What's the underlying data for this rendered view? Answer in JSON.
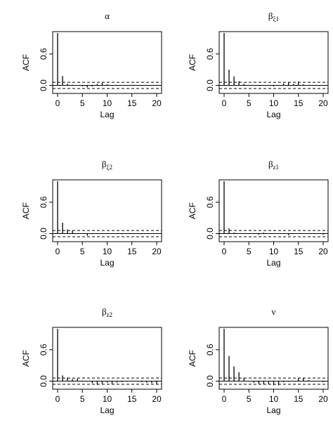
{
  "chart_data": [
    {
      "type": "bar",
      "title": "α",
      "xlabel": "Lag",
      "ylabel": "ACF",
      "xlim": [
        0,
        20
      ],
      "ylim": [
        -0.1,
        1.0
      ],
      "xticks": [
        "0",
        "5",
        "10",
        "15",
        "20"
      ],
      "yticks": [
        "0.0",
        "0.6"
      ],
      "confidence_band": [
        -0.06,
        0.06
      ],
      "lags": [
        0,
        1,
        2,
        3,
        4,
        5,
        6,
        7,
        8,
        9,
        10,
        11,
        12,
        13,
        14,
        15,
        16,
        17,
        18,
        19,
        20
      ],
      "values": [
        1.0,
        0.18,
        0.03,
        0.01,
        0.0,
        -0.02,
        -0.04,
        -0.02,
        0.03,
        0.05,
        0.02,
        0.0,
        -0.01,
        0.0,
        0.0,
        0.01,
        0.0,
        -0.01,
        0.0,
        0.0,
        0.0
      ]
    },
    {
      "type": "bar",
      "title": "β",
      "title_sub": "ξ1",
      "xlabel": "Lag",
      "ylabel": "ACF",
      "xlim": [
        0,
        20
      ],
      "ylim": [
        -0.1,
        1.0
      ],
      "xticks": [
        "0",
        "5",
        "10",
        "15",
        "20"
      ],
      "yticks": [
        "0.0",
        "0.6"
      ],
      "confidence_band": [
        -0.06,
        0.06
      ],
      "lags": [
        0,
        1,
        2,
        3,
        4,
        5,
        6,
        7,
        8,
        9,
        10,
        11,
        12,
        13,
        14,
        15,
        16,
        17,
        18,
        19,
        20
      ],
      "values": [
        1.0,
        0.3,
        0.17,
        0.08,
        0.03,
        0.01,
        0.0,
        -0.01,
        0.0,
        0.0,
        -0.02,
        0.0,
        0.04,
        0.06,
        0.03,
        0.07,
        0.02,
        0.0,
        0.0,
        0.0,
        0.0
      ]
    },
    {
      "type": "bar",
      "title": "β",
      "title_sub": "ξ2",
      "xlabel": "Lag",
      "ylabel": "ACF",
      "xlim": [
        0,
        20
      ],
      "ylim": [
        -0.1,
        1.0
      ],
      "xticks": [
        "0",
        "5",
        "10",
        "15",
        "20"
      ],
      "yticks": [
        "0.0",
        "0.6"
      ],
      "confidence_band": [
        -0.06,
        0.06
      ],
      "lags": [
        0,
        1,
        2,
        3,
        4,
        5,
        6,
        7,
        8,
        9,
        10,
        11,
        12,
        13,
        14,
        15,
        16,
        17,
        18,
        19,
        20
      ],
      "values": [
        1.0,
        0.21,
        0.08,
        0.06,
        0.01,
        0.0,
        -0.04,
        -0.01,
        0.0,
        0.0,
        0.0,
        0.0,
        0.0,
        -0.01,
        0.0,
        0.0,
        0.0,
        -0.01,
        0.0,
        0.0,
        0.0
      ]
    },
    {
      "type": "bar",
      "title": "β",
      "title_sub": "z1",
      "xlabel": "Lag",
      "ylabel": "ACF",
      "xlim": [
        0,
        20
      ],
      "ylim": [
        -0.1,
        1.0
      ],
      "xticks": [
        "0",
        "5",
        "10",
        "15",
        "20"
      ],
      "yticks": [
        "0.0",
        "0.6"
      ],
      "confidence_band": [
        -0.06,
        0.06
      ],
      "lags": [
        0,
        1,
        2,
        3,
        4,
        5,
        6,
        7,
        8,
        9,
        10,
        11,
        12,
        13,
        14,
        15,
        16,
        17,
        18,
        19,
        20
      ],
      "values": [
        1.0,
        0.1,
        0.02,
        0.0,
        0.01,
        0.0,
        0.0,
        -0.02,
        0.02,
        0.0,
        0.0,
        0.0,
        0.0,
        -0.03,
        0.0,
        0.0,
        0.0,
        0.0,
        0.0,
        0.0,
        -0.02
      ]
    },
    {
      "type": "bar",
      "title": "β",
      "title_sub": "z2",
      "xlabel": "Lag",
      "ylabel": "ACF",
      "xlim": [
        0,
        20
      ],
      "ylim": [
        -0.1,
        1.0
      ],
      "xticks": [
        "0",
        "5",
        "10",
        "15",
        "20"
      ],
      "yticks": [
        "0.0",
        "0.6"
      ],
      "confidence_band": [
        -0.06,
        0.06
      ],
      "lags": [
        0,
        1,
        2,
        3,
        4,
        5,
        6,
        7,
        8,
        9,
        10,
        11,
        12,
        13,
        14,
        15,
        16,
        17,
        18,
        19,
        20
      ],
      "values": [
        1.0,
        0.11,
        0.07,
        0.04,
        0.05,
        0.01,
        -0.01,
        -0.04,
        -0.07,
        -0.05,
        -0.03,
        -0.05,
        -0.03,
        -0.02,
        -0.01,
        0.0,
        0.0,
        -0.02,
        -0.03,
        -0.04,
        -0.05
      ]
    },
    {
      "type": "bar",
      "title": "ν",
      "xlabel": "Lag",
      "ylabel": "ACF",
      "xlim": [
        0,
        20
      ],
      "ylim": [
        -0.1,
        1.0
      ],
      "xticks": [
        "0",
        "5",
        "10",
        "15",
        "20"
      ],
      "yticks": [
        "0.0",
        "0.6"
      ],
      "confidence_band": [
        -0.06,
        0.06
      ],
      "lags": [
        0,
        1,
        2,
        3,
        4,
        5,
        6,
        7,
        8,
        9,
        10,
        11,
        12,
        13,
        14,
        15,
        16,
        17,
        18,
        19,
        20
      ],
      "values": [
        1.0,
        0.48,
        0.28,
        0.17,
        0.06,
        0.0,
        -0.03,
        -0.05,
        -0.06,
        -0.06,
        -0.08,
        -0.08,
        -0.02,
        -0.01,
        0.0,
        0.05,
        0.06,
        0.02,
        0.0,
        0.0,
        -0.02
      ]
    }
  ]
}
